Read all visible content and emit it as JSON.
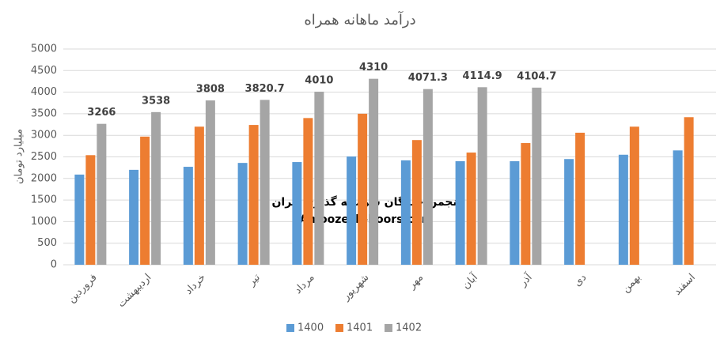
{
  "chart_data": {
    "type": "bar",
    "title": "درآمد ماهانه همراه",
    "y_label": "میلیارد تومان",
    "annotations": [
      "انجمن خبرگان سرمایه گذاری ایران",
      "Amoozesh-boors.com"
    ],
    "categories": [
      "فروردین",
      "اردیبهشت",
      "خرداد",
      "تیر",
      "مرداد",
      "شهریور",
      "مهر",
      "آبان",
      "آذر",
      "دی",
      "بهمن",
      "اسفند"
    ],
    "series": [
      {
        "name": "1400",
        "color": "#5b9bd5",
        "values": [
          2090,
          2200,
          2270,
          2360,
          2380,
          2510,
          2420,
          2400,
          2400,
          2450,
          2550,
          2650
        ]
      },
      {
        "name": "1401",
        "color": "#ed7d31",
        "values": [
          2540,
          2970,
          3200,
          3240,
          3400,
          3500,
          2890,
          2600,
          2820,
          3060,
          3200,
          3420
        ]
      },
      {
        "name": "1402",
        "color": "#a5a5a5",
        "values": [
          3266,
          3538,
          3808,
          3820.7,
          4010,
          4310,
          4071.3,
          4114.9,
          4104.7,
          null,
          null,
          null
        ],
        "data_labels": true
      }
    ],
    "ylim": [
      0,
      5000
    ],
    "yticks": [
      0,
      500,
      1000,
      1500,
      2000,
      2500,
      3000,
      3500,
      4000,
      4500,
      5000
    ],
    "grid": true,
    "legend": "bottom"
  }
}
